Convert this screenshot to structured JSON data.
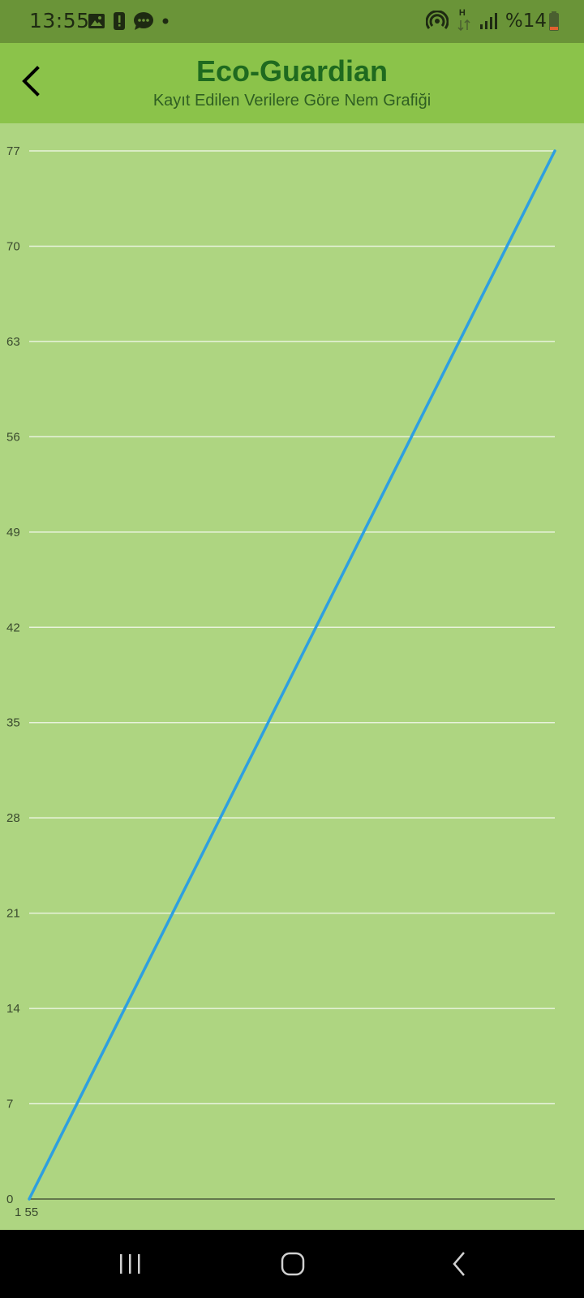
{
  "status_bar": {
    "time": "13:55",
    "battery_text": "%14",
    "icons_left": [
      "image-icon",
      "alert-icon",
      "chat-icon",
      "dot-icon"
    ],
    "icons_right": [
      "hotspot-icon",
      "data-arrows-icon",
      "signal-icon",
      "battery-icon"
    ],
    "network_label": "H"
  },
  "app_bar": {
    "title": "Eco-Guardian",
    "subtitle": "Kayıt Edilen Verilere Göre Nem Grafiği",
    "back_icon": "chevron-left-icon"
  },
  "colors": {
    "status_bar": "#6a9438",
    "app_bar": "#8bc34a",
    "chart_background": "#aed581",
    "line": "#2e9fe0",
    "title": "#1f6a1f",
    "subtitle": "#2f5f22"
  },
  "chart_data": {
    "type": "line",
    "title": "",
    "xlabel": "",
    "ylabel": "",
    "x_tick_labels": [
      "1 55"
    ],
    "y_ticks": [
      0,
      7,
      14,
      21,
      28,
      35,
      42,
      49,
      56,
      63,
      70,
      77
    ],
    "ylim": [
      0,
      77
    ],
    "grid": true,
    "series": [
      {
        "values": [
          0,
          77
        ]
      }
    ]
  },
  "nav_bar": {
    "buttons": [
      "recents-icon",
      "home-icon",
      "back-icon"
    ]
  }
}
